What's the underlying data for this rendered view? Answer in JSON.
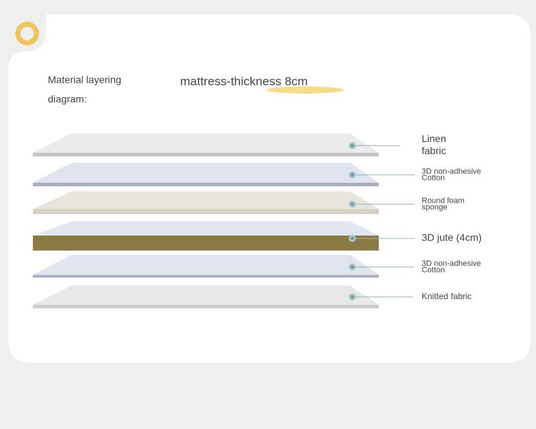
{
  "header": {
    "title_lines": [
      "Material layering",
      "diagram:"
    ],
    "subtitle": "mattress-thickness 8cm"
  },
  "layers": [
    {
      "label_lines": [
        "Linen",
        "fabric"
      ]
    },
    {
      "label_lines": [
        "3D non-adhesive",
        "Cotton"
      ]
    },
    {
      "label_lines": [
        "Round foam",
        "sponge"
      ]
    },
    {
      "label_lines": [
        "3D jute (4cm)"
      ]
    },
    {
      "label_lines": [
        "3D non-adhesive",
        "Cotton"
      ]
    },
    {
      "label_lines": [
        "Knitted fabric"
      ]
    }
  ]
}
